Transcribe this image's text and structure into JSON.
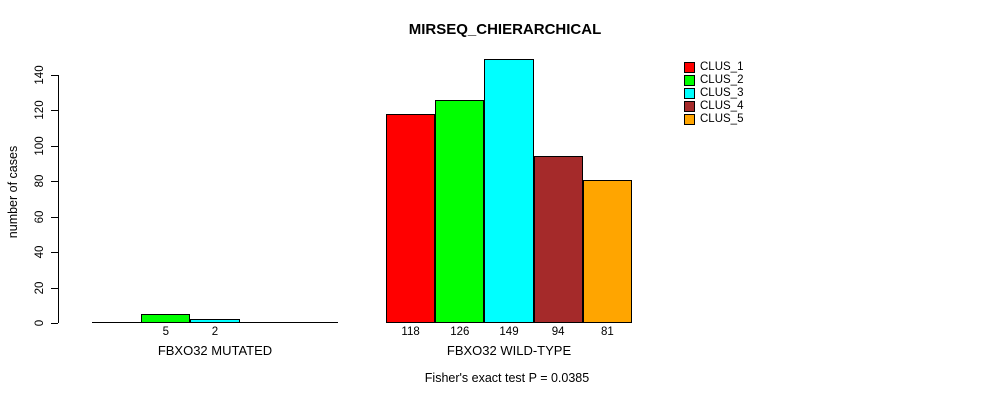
{
  "title": "MIRSEQ_CHIERARCHICAL",
  "subtitle": "Fisher's exact test P = 0.0385",
  "chart_data": {
    "type": "bar",
    "title": "MIRSEQ_CHIERARCHICAL",
    "xlabel": "",
    "ylabel": "number of cases",
    "ylim": [
      0,
      150
    ],
    "yticks": [
      0,
      20,
      40,
      60,
      80,
      100,
      120,
      140
    ],
    "grid": false,
    "legend_position": "top-right",
    "annotation": "Fisher's exact test P = 0.0385",
    "categories": [
      "FBXO32 MUTATED",
      "FBXO32 WILD-TYPE"
    ],
    "series": [
      {
        "name": "CLUS_1",
        "color": "#FF0000",
        "values": [
          0,
          118
        ]
      },
      {
        "name": "CLUS_2",
        "color": "#00FF00",
        "values": [
          5,
          126
        ]
      },
      {
        "name": "CLUS_3",
        "color": "#00FFFF",
        "values": [
          2,
          149
        ]
      },
      {
        "name": "CLUS_4",
        "color": "#A52A2A",
        "values": [
          0,
          94
        ]
      },
      {
        "name": "CLUS_5",
        "color": "#FFA500",
        "values": [
          0,
          81
        ]
      }
    ],
    "bar_value_labels": {
      "FBXO32 MUTATED": [
        "5",
        "2"
      ],
      "FBXO32 WILD-TYPE": [
        "118",
        "126",
        "149",
        "94",
        "81"
      ]
    }
  }
}
